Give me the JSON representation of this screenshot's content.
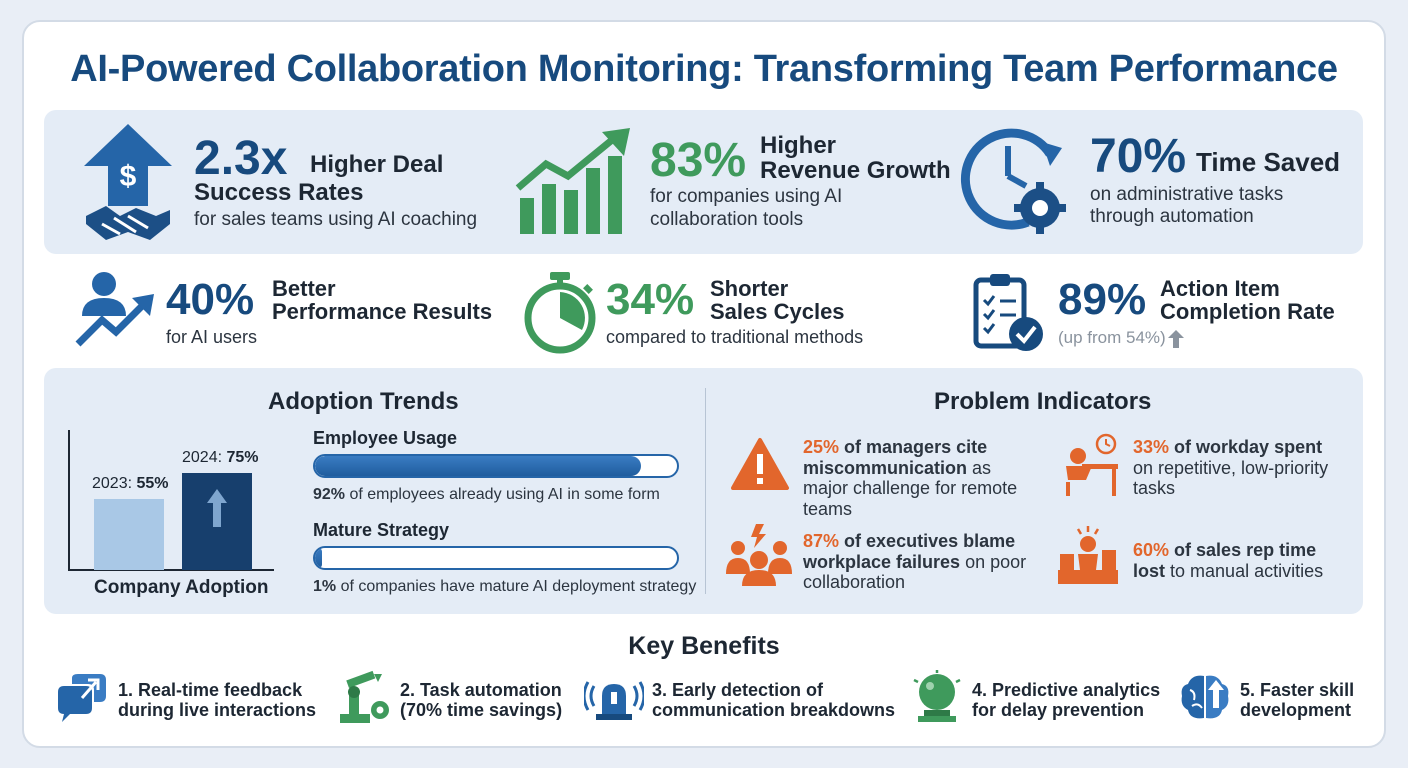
{
  "title": "AI-Powered Collaboration Monitoring: Transforming Team Performance",
  "colors": {
    "navy": "#174a7e",
    "blue": "#2565a8",
    "green": "#3f9a5c",
    "orange": "#e2662c",
    "panel": "#e4ecf6"
  },
  "stats": [
    {
      "value": "2.3x",
      "headline_a": "Higher Deal",
      "headline_b": "Success Rates",
      "sub": "for sales teams using AI coaching",
      "icon": "dollar-handshake-icon"
    },
    {
      "value": "83%",
      "headline_a": "Higher",
      "headline_b": "Revenue Growth",
      "sub_a": "for companies using AI",
      "sub_b": "collaboration tools",
      "icon": "growth-chart-icon"
    },
    {
      "value": "70%",
      "headline": "Time Saved",
      "sub_a": "on administrative tasks",
      "sub_b": "through automation",
      "icon": "clock-gear-icon"
    },
    {
      "value": "40%",
      "headline_a": "Better",
      "headline_b": "Performance Results",
      "sub": "for AI users",
      "icon": "person-trend-icon"
    },
    {
      "value": "34%",
      "headline_a": "Shorter",
      "headline_b": "Sales Cycles",
      "sub": "compared to traditional methods",
      "icon": "stopwatch-icon"
    },
    {
      "value": "89%",
      "headline_a": "Action Item",
      "headline_b": "Completion Rate",
      "sub": "(up from 54%)",
      "icon": "checklist-icon"
    }
  ],
  "adoption": {
    "title": "Adoption Trends",
    "chart_label": "Company Adoption",
    "bar_2023_year": "2023:",
    "bar_2023_value": "55%",
    "bar_2024_year": "2024:",
    "bar_2024_value": "75%",
    "usage_label": "Employee Usage",
    "usage_pct": "92%",
    "usage_caption": "of employees already using AI in some form",
    "usage_fill": 0.9,
    "strategy_label": "Mature Strategy",
    "strategy_pct": "1%",
    "strategy_caption": "of companies have mature AI deployment strategy",
    "strategy_fill": 0.02
  },
  "chart_data": {
    "type": "bar",
    "categories": [
      "2023",
      "2024"
    ],
    "values": [
      55,
      75
    ],
    "title": "Company Adoption",
    "ylim": [
      0,
      100
    ]
  },
  "problems": {
    "title": "Problem Indicators",
    "items": [
      {
        "pct": "25%",
        "bold": "of managers cite miscommunication",
        "rest": "as major challenge for remote teams",
        "icon": "warning-icon"
      },
      {
        "pct": "33%",
        "bold": "of workday spent",
        "rest": "on repetitive, low-priority tasks",
        "icon": "tired-worker-icon"
      },
      {
        "pct": "87%",
        "bold": "of executives blame workplace failures",
        "rest": "on poor collaboration",
        "icon": "group-conflict-icon"
      },
      {
        "pct": "60%",
        "bold": "of sales rep time lost",
        "rest": "to manual activities",
        "icon": "paperwork-desk-icon"
      }
    ]
  },
  "benefits": {
    "title": "Key Benefits",
    "items": [
      {
        "a": "1. Real-time feedback",
        "b": "during live interactions",
        "icon": "chat-feedback-icon"
      },
      {
        "a": "2. Task automation",
        "b": "(70% time savings)",
        "icon": "robot-arm-icon"
      },
      {
        "a": "3. Early detection of",
        "b": "communication breakdowns",
        "icon": "alarm-beacon-icon"
      },
      {
        "a": "4. Predictive analytics",
        "b": "for delay prevention",
        "icon": "crystal-ball-icon"
      },
      {
        "a": "5. Faster skill",
        "b": "development",
        "icon": "brain-growth-icon"
      }
    ]
  }
}
